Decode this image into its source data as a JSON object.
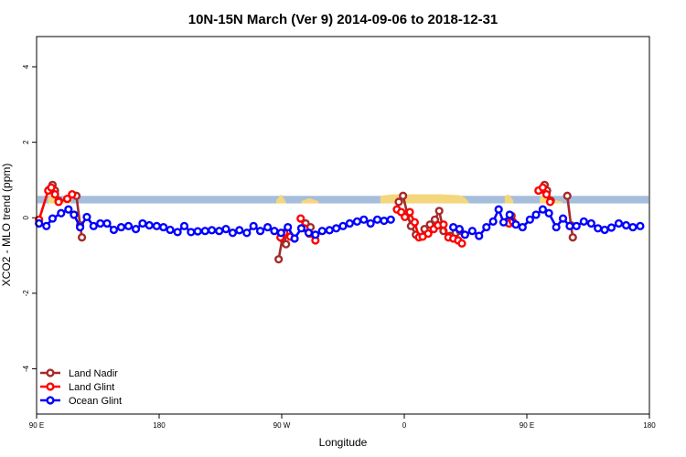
{
  "chart_data": {
    "type": "line",
    "title": "10N-15N March (Ver 9)   2014-09-06 to 2018-12-31",
    "xlabel": "Longitude",
    "ylabel": "XCO2 - MLO trend (ppm)",
    "xlim": [
      0,
      1.0
    ],
    "ylim": [
      -5.2,
      4.8
    ],
    "x_ticks": [
      {
        "x": 0.0,
        "label": "90 E"
      },
      {
        "x": 0.2,
        "label": "180"
      },
      {
        "x": 0.4,
        "label": "90 W"
      },
      {
        "x": 0.6,
        "label": "0"
      },
      {
        "x": 0.8,
        "label": "90 E"
      },
      {
        "x": 1.0,
        "label": "180"
      }
    ],
    "y_ticks": [
      {
        "y": -4,
        "label": "-4"
      },
      {
        "y": -2,
        "label": "-2"
      },
      {
        "y": 0,
        "label": "0"
      },
      {
        "y": 2,
        "label": "2"
      },
      {
        "y": 4,
        "label": "4"
      }
    ],
    "background_band": {
      "y0": 0.38,
      "y1": 0.58,
      "color": "#a6bddb"
    },
    "land_mask": {
      "color": "#f4d77c",
      "base": 0.38,
      "segments": [
        [
          [
            0.019,
            0.53
          ],
          [
            0.027,
            0.62
          ],
          [
            0.033,
            0.56
          ],
          [
            0.04,
            0.5
          ],
          [
            0.047,
            0.46
          ],
          [
            0.056,
            0.42
          ]
        ],
        [
          [
            0.391,
            0.47
          ],
          [
            0.399,
            0.62
          ],
          [
            0.407,
            0.42
          ]
        ],
        [
          [
            0.432,
            0.44
          ],
          [
            0.445,
            0.52
          ],
          [
            0.46,
            0.44
          ]
        ],
        [
          [
            0.561,
            0.58
          ],
          [
            0.58,
            0.62
          ],
          [
            0.62,
            0.62
          ],
          [
            0.66,
            0.62
          ],
          [
            0.69,
            0.6
          ],
          [
            0.7,
            0.52
          ],
          [
            0.705,
            0.42
          ]
        ],
        [
          [
            0.764,
            0.58
          ],
          [
            0.77,
            0.62
          ],
          [
            0.778,
            0.46
          ]
        ],
        [
          [
            0.821,
            0.53
          ],
          [
            0.829,
            0.62
          ],
          [
            0.835,
            0.56
          ],
          [
            0.842,
            0.5
          ],
          [
            0.849,
            0.46
          ],
          [
            0.858,
            0.42
          ]
        ]
      ]
    },
    "series": [
      {
        "name": "Land Nadir",
        "color": "#a52a2a",
        "segments": [
          [
            [
              0.021,
              0.75
            ],
            [
              0.026,
              0.87
            ],
            [
              0.03,
              0.72
            ],
            [
              0.036,
              0.45
            ]
          ],
          [
            [
              0.065,
              0.58
            ],
            [
              0.071,
              -0.2
            ],
            [
              0.074,
              -0.52
            ]
          ],
          [
            [
              0.395,
              -1.1
            ],
            [
              0.401,
              -0.55
            ],
            [
              0.407,
              -0.7
            ]
          ],
          [
            [
              0.439,
              -0.15
            ],
            [
              0.447,
              -0.25
            ]
          ],
          [
            [
              0.591,
              0.42
            ],
            [
              0.598,
              0.58
            ],
            [
              0.605,
              0.1
            ],
            [
              0.611,
              -0.22
            ],
            [
              0.619,
              -0.45
            ]
          ],
          [
            [
              0.633,
              -0.3
            ],
            [
              0.642,
              -0.18
            ],
            [
              0.65,
              -0.05
            ],
            [
              0.657,
              0.18
            ],
            [
              0.664,
              -0.35
            ],
            [
              0.675,
              -0.48
            ],
            [
              0.684,
              -0.4
            ],
            [
              0.691,
              -0.35
            ]
          ],
          [
            [
              0.768,
              -0.1
            ],
            [
              0.775,
              0.05
            ]
          ],
          [
            [
              0.824,
              0.75
            ],
            [
              0.829,
              0.87
            ],
            [
              0.833,
              0.72
            ],
            [
              0.839,
              0.45
            ]
          ],
          [
            [
              0.866,
              0.58
            ],
            [
              0.872,
              -0.2
            ],
            [
              0.875,
              -0.52
            ]
          ]
        ]
      },
      {
        "name": "Land Glint",
        "color": "#ff0000",
        "segments": [
          [
            [
              0.004,
              -0.05
            ],
            [
              0.019,
              0.72
            ],
            [
              0.024,
              0.8
            ],
            [
              0.03,
              0.62
            ],
            [
              0.036,
              0.42
            ],
            [
              0.05,
              0.5
            ],
            [
              0.058,
              0.62
            ]
          ],
          [
            [
              0.398,
              -0.52
            ],
            [
              0.404,
              -0.4
            ],
            [
              0.414,
              -0.5
            ]
          ],
          [
            [
              0.431,
              -0.02
            ],
            [
              0.437,
              -0.28
            ],
            [
              0.445,
              -0.42
            ],
            [
              0.455,
              -0.6
            ]
          ],
          [
            [
              0.588,
              0.22
            ],
            [
              0.595,
              0.15
            ],
            [
              0.601,
              0.02
            ],
            [
              0.609,
              0.15
            ],
            [
              0.617,
              -0.12
            ],
            [
              0.624,
              -0.52
            ],
            [
              0.63,
              -0.5
            ],
            [
              0.639,
              -0.42
            ],
            [
              0.648,
              -0.3
            ],
            [
              0.655,
              -0.2
            ],
            [
              0.664,
              -0.18
            ],
            [
              0.672,
              -0.52
            ],
            [
              0.68,
              -0.55
            ],
            [
              0.688,
              -0.6
            ],
            [
              0.694,
              -0.68
            ]
          ],
          [
            [
              0.771,
              -0.15
            ],
            [
              0.777,
              -0.1
            ]
          ],
          [
            [
              0.819,
              0.72
            ],
            [
              0.826,
              0.8
            ],
            [
              0.832,
              0.62
            ],
            [
              0.838,
              0.42
            ]
          ]
        ]
      },
      {
        "name": "Ocean Glint",
        "color": "#0000ff",
        "segments": [
          [
            [
              0.004,
              -0.15
            ],
            [
              0.016,
              -0.22
            ],
            [
              0.026,
              -0.02
            ],
            [
              0.04,
              0.12
            ],
            [
              0.052,
              0.22
            ],
            [
              0.061,
              0.08
            ],
            [
              0.071,
              -0.25
            ],
            [
              0.082,
              0.02
            ],
            [
              0.093,
              -0.22
            ],
            [
              0.104,
              -0.15
            ],
            [
              0.115,
              -0.15
            ],
            [
              0.126,
              -0.32
            ],
            [
              0.138,
              -0.25
            ],
            [
              0.15,
              -0.22
            ],
            [
              0.162,
              -0.3
            ],
            [
              0.173,
              -0.15
            ],
            [
              0.184,
              -0.2
            ],
            [
              0.196,
              -0.22
            ],
            [
              0.207,
              -0.25
            ],
            [
              0.218,
              -0.32
            ],
            [
              0.23,
              -0.38
            ],
            [
              0.241,
              -0.22
            ],
            [
              0.252,
              -0.38
            ],
            [
              0.263,
              -0.36
            ],
            [
              0.275,
              -0.35
            ],
            [
              0.286,
              -0.33
            ],
            [
              0.298,
              -0.35
            ],
            [
              0.309,
              -0.3
            ],
            [
              0.32,
              -0.4
            ],
            [
              0.331,
              -0.33
            ],
            [
              0.343,
              -0.4
            ],
            [
              0.354,
              -0.22
            ],
            [
              0.365,
              -0.35
            ],
            [
              0.377,
              -0.25
            ],
            [
              0.388,
              -0.35
            ],
            [
              0.399,
              -0.4
            ],
            [
              0.41,
              -0.25
            ],
            [
              0.421,
              -0.55
            ],
            [
              0.432,
              -0.28
            ],
            [
              0.444,
              -0.4
            ],
            [
              0.455,
              -0.45
            ],
            [
              0.466,
              -0.35
            ],
            [
              0.478,
              -0.33
            ],
            [
              0.489,
              -0.28
            ],
            [
              0.5,
              -0.22
            ],
            [
              0.511,
              -0.15
            ],
            [
              0.523,
              -0.1
            ],
            [
              0.534,
              -0.05
            ],
            [
              0.545,
              -0.15
            ],
            [
              0.556,
              -0.05
            ],
            [
              0.567,
              -0.08
            ],
            [
              0.578,
              -0.05
            ]
          ],
          [
            [
              0.68,
              -0.25
            ],
            [
              0.69,
              -0.3
            ],
            [
              0.699,
              -0.45
            ],
            [
              0.711,
              -0.35
            ],
            [
              0.722,
              -0.48
            ],
            [
              0.734,
              -0.25
            ],
            [
              0.745,
              -0.1
            ],
            [
              0.754,
              0.22
            ],
            [
              0.762,
              -0.12
            ],
            [
              0.772,
              0.08
            ],
            [
              0.782,
              -0.18
            ],
            [
              0.793,
              -0.25
            ],
            [
              0.805,
              -0.05
            ],
            [
              0.815,
              0.08
            ],
            [
              0.826,
              0.22
            ],
            [
              0.836,
              0.12
            ],
            [
              0.848,
              -0.25
            ],
            [
              0.859,
              -0.02
            ],
            [
              0.87,
              -0.22
            ],
            [
              0.881,
              -0.22
            ],
            [
              0.893,
              -0.1
            ],
            [
              0.905,
              -0.15
            ],
            [
              0.916,
              -0.28
            ],
            [
              0.927,
              -0.32
            ],
            [
              0.938,
              -0.26
            ],
            [
              0.95,
              -0.15
            ],
            [
              0.962,
              -0.2
            ],
            [
              0.973,
              -0.25
            ],
            [
              0.985,
              -0.22
            ]
          ]
        ]
      }
    ],
    "legend_placement": "bottom-left"
  }
}
